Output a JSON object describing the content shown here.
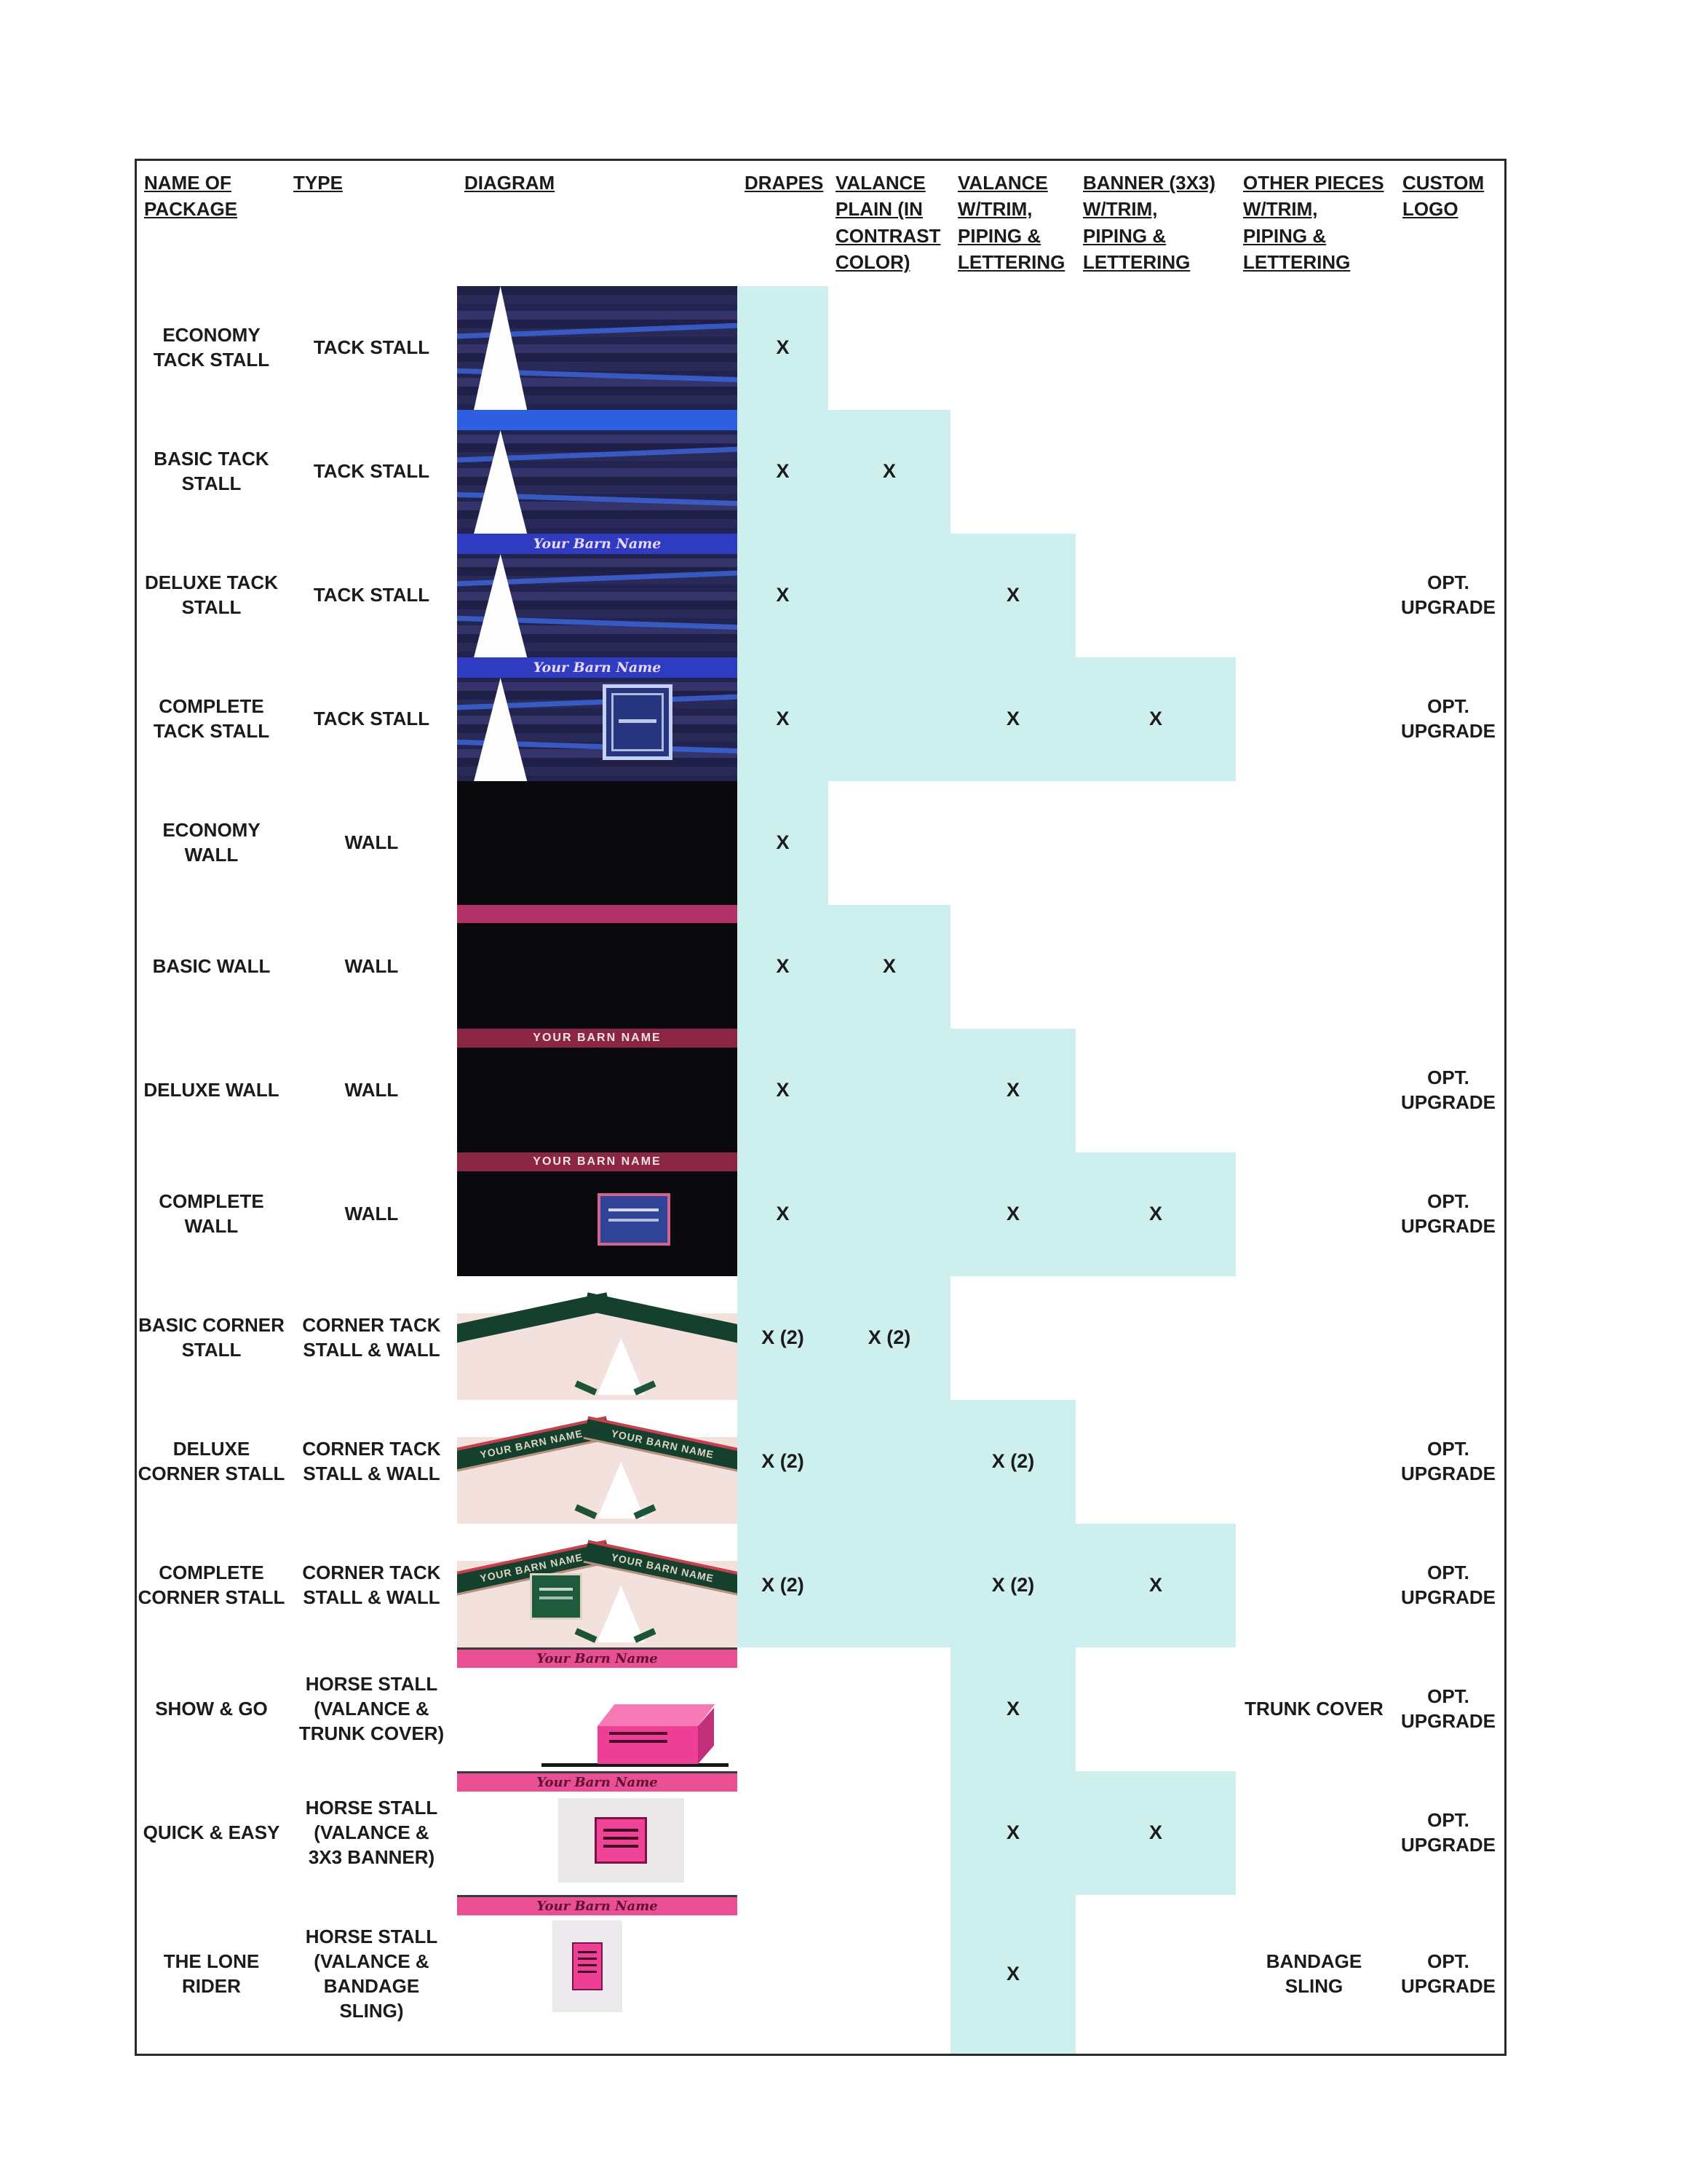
{
  "diagrams": {
    "barn_script": "Your Barn Name",
    "barn_caps": "YOUR BARN NAME"
  },
  "colors": {
    "highlight_cyan": "#cdefee",
    "tack_drape_navy": "#2a2a59",
    "wall_black": "#0a0a0e",
    "valance_blue": "#2d5fe0",
    "valance_pink": "#e94f93",
    "valance_maroon": "#8a2544",
    "corner_green": "#16402e",
    "trunk_pink": "#ee3f97"
  },
  "headers": {
    "name": "NAME OF\nPACKAGE",
    "type": "TYPE",
    "diagram": "DIAGRAM",
    "drapes": "DRAPES",
    "valance_plain": "VALANCE\nPLAIN (IN\nCONTRAST\nCOLOR)",
    "valance_trim": "VALANCE\nW/TRIM,\nPIPING &\nLETTERING",
    "banner": "BANNER (3X3)\nW/TRIM,\nPIPING &\nLETTERING",
    "other": "OTHER PIECES\nW/TRIM,\nPIPING &\nLETTERING",
    "logo": "CUSTOM\nLOGO"
  },
  "rows": [
    {
      "name": "ECONOMY\nTACK STALL",
      "type": "TACK STALL",
      "drapes": "X",
      "valance_plain": "",
      "valance_trim": "",
      "banner": "",
      "other": "",
      "logo": "",
      "highlighted": [
        "drapes"
      ]
    },
    {
      "name": "BASIC TACK\nSTALL",
      "type": "TACK STALL",
      "drapes": "X",
      "valance_plain": "X",
      "valance_trim": "",
      "banner": "",
      "other": "",
      "logo": "",
      "highlighted": [
        "drapes",
        "valance_plain"
      ]
    },
    {
      "name": "DELUXE TACK\nSTALL",
      "type": "TACK STALL",
      "drapes": "X",
      "valance_plain": "",
      "valance_trim": "X",
      "banner": "",
      "other": "",
      "logo": "OPT.\nUPGRADE",
      "highlighted": [
        "drapes",
        "valance_plain",
        "valance_trim"
      ]
    },
    {
      "name": "COMPLETE\nTACK STALL",
      "type": "TACK STALL",
      "drapes": "X",
      "valance_plain": "",
      "valance_trim": "X",
      "banner": "X",
      "other": "",
      "logo": "OPT.\nUPGRADE",
      "highlighted": [
        "drapes",
        "valance_plain",
        "valance_trim",
        "banner"
      ]
    },
    {
      "name": "ECONOMY\nWALL",
      "type": "WALL",
      "drapes": "X",
      "valance_plain": "",
      "valance_trim": "",
      "banner": "",
      "other": "",
      "logo": "",
      "highlighted": [
        "drapes"
      ]
    },
    {
      "name": "BASIC WALL",
      "type": "WALL",
      "drapes": "X",
      "valance_plain": "X",
      "valance_trim": "",
      "banner": "",
      "other": "",
      "logo": "",
      "highlighted": [
        "drapes",
        "valance_plain"
      ]
    },
    {
      "name": "DELUXE WALL",
      "type": "WALL",
      "drapes": "X",
      "valance_plain": "",
      "valance_trim": "X",
      "banner": "",
      "other": "",
      "logo": "OPT.\nUPGRADE",
      "highlighted": [
        "drapes",
        "valance_plain",
        "valance_trim"
      ]
    },
    {
      "name": "COMPLETE\nWALL",
      "type": "WALL",
      "drapes": "X",
      "valance_plain": "",
      "valance_trim": "X",
      "banner": "X",
      "other": "",
      "logo": "OPT.\nUPGRADE",
      "highlighted": [
        "drapes",
        "valance_plain",
        "valance_trim",
        "banner"
      ]
    },
    {
      "name": "BASIC CORNER\nSTALL",
      "type": "CORNER TACK\nSTALL & WALL",
      "drapes": "X (2)",
      "valance_plain": "X (2)",
      "valance_trim": "",
      "banner": "",
      "other": "",
      "logo": "",
      "highlighted": [
        "drapes",
        "valance_plain"
      ]
    },
    {
      "name": "DELUXE\nCORNER STALL",
      "type": "CORNER TACK\nSTALL & WALL",
      "drapes": "X (2)",
      "valance_plain": "",
      "valance_trim": "X (2)",
      "banner": "",
      "other": "",
      "logo": "OPT.\nUPGRADE",
      "highlighted": [
        "drapes",
        "valance_plain",
        "valance_trim"
      ]
    },
    {
      "name": "COMPLETE\nCORNER STALL",
      "type": "CORNER TACK\nSTALL & WALL",
      "drapes": "X (2)",
      "valance_plain": "",
      "valance_trim": "X (2)",
      "banner": "X",
      "other": "",
      "logo": "OPT.\nUPGRADE",
      "highlighted": [
        "drapes",
        "valance_plain",
        "valance_trim",
        "banner"
      ]
    },
    {
      "name": "SHOW & GO",
      "type": "HORSE STALL\n(VALANCE &\nTRUNK COVER)",
      "drapes": "",
      "valance_plain": "",
      "valance_trim": "X",
      "banner": "",
      "other": "TRUNK COVER",
      "logo": "OPT.\nUPGRADE",
      "highlighted": [
        "valance_trim"
      ]
    },
    {
      "name": "QUICK & EASY",
      "type": "HORSE STALL\n(VALANCE &\n3X3 BANNER)",
      "drapes": "",
      "valance_plain": "",
      "valance_trim": "X",
      "banner": "X",
      "other": "",
      "logo": "OPT.\nUPGRADE",
      "highlighted": [
        "valance_trim",
        "banner"
      ]
    },
    {
      "name": "THE LONE\nRIDER",
      "type": "HORSE STALL\n(VALANCE &\nBANDAGE\nSLING)",
      "drapes": "",
      "valance_plain": "",
      "valance_trim": "X",
      "banner": "",
      "other": "BANDAGE\nSLING",
      "logo": "OPT.\nUPGRADE",
      "highlighted": [
        "valance_trim"
      ]
    }
  ]
}
